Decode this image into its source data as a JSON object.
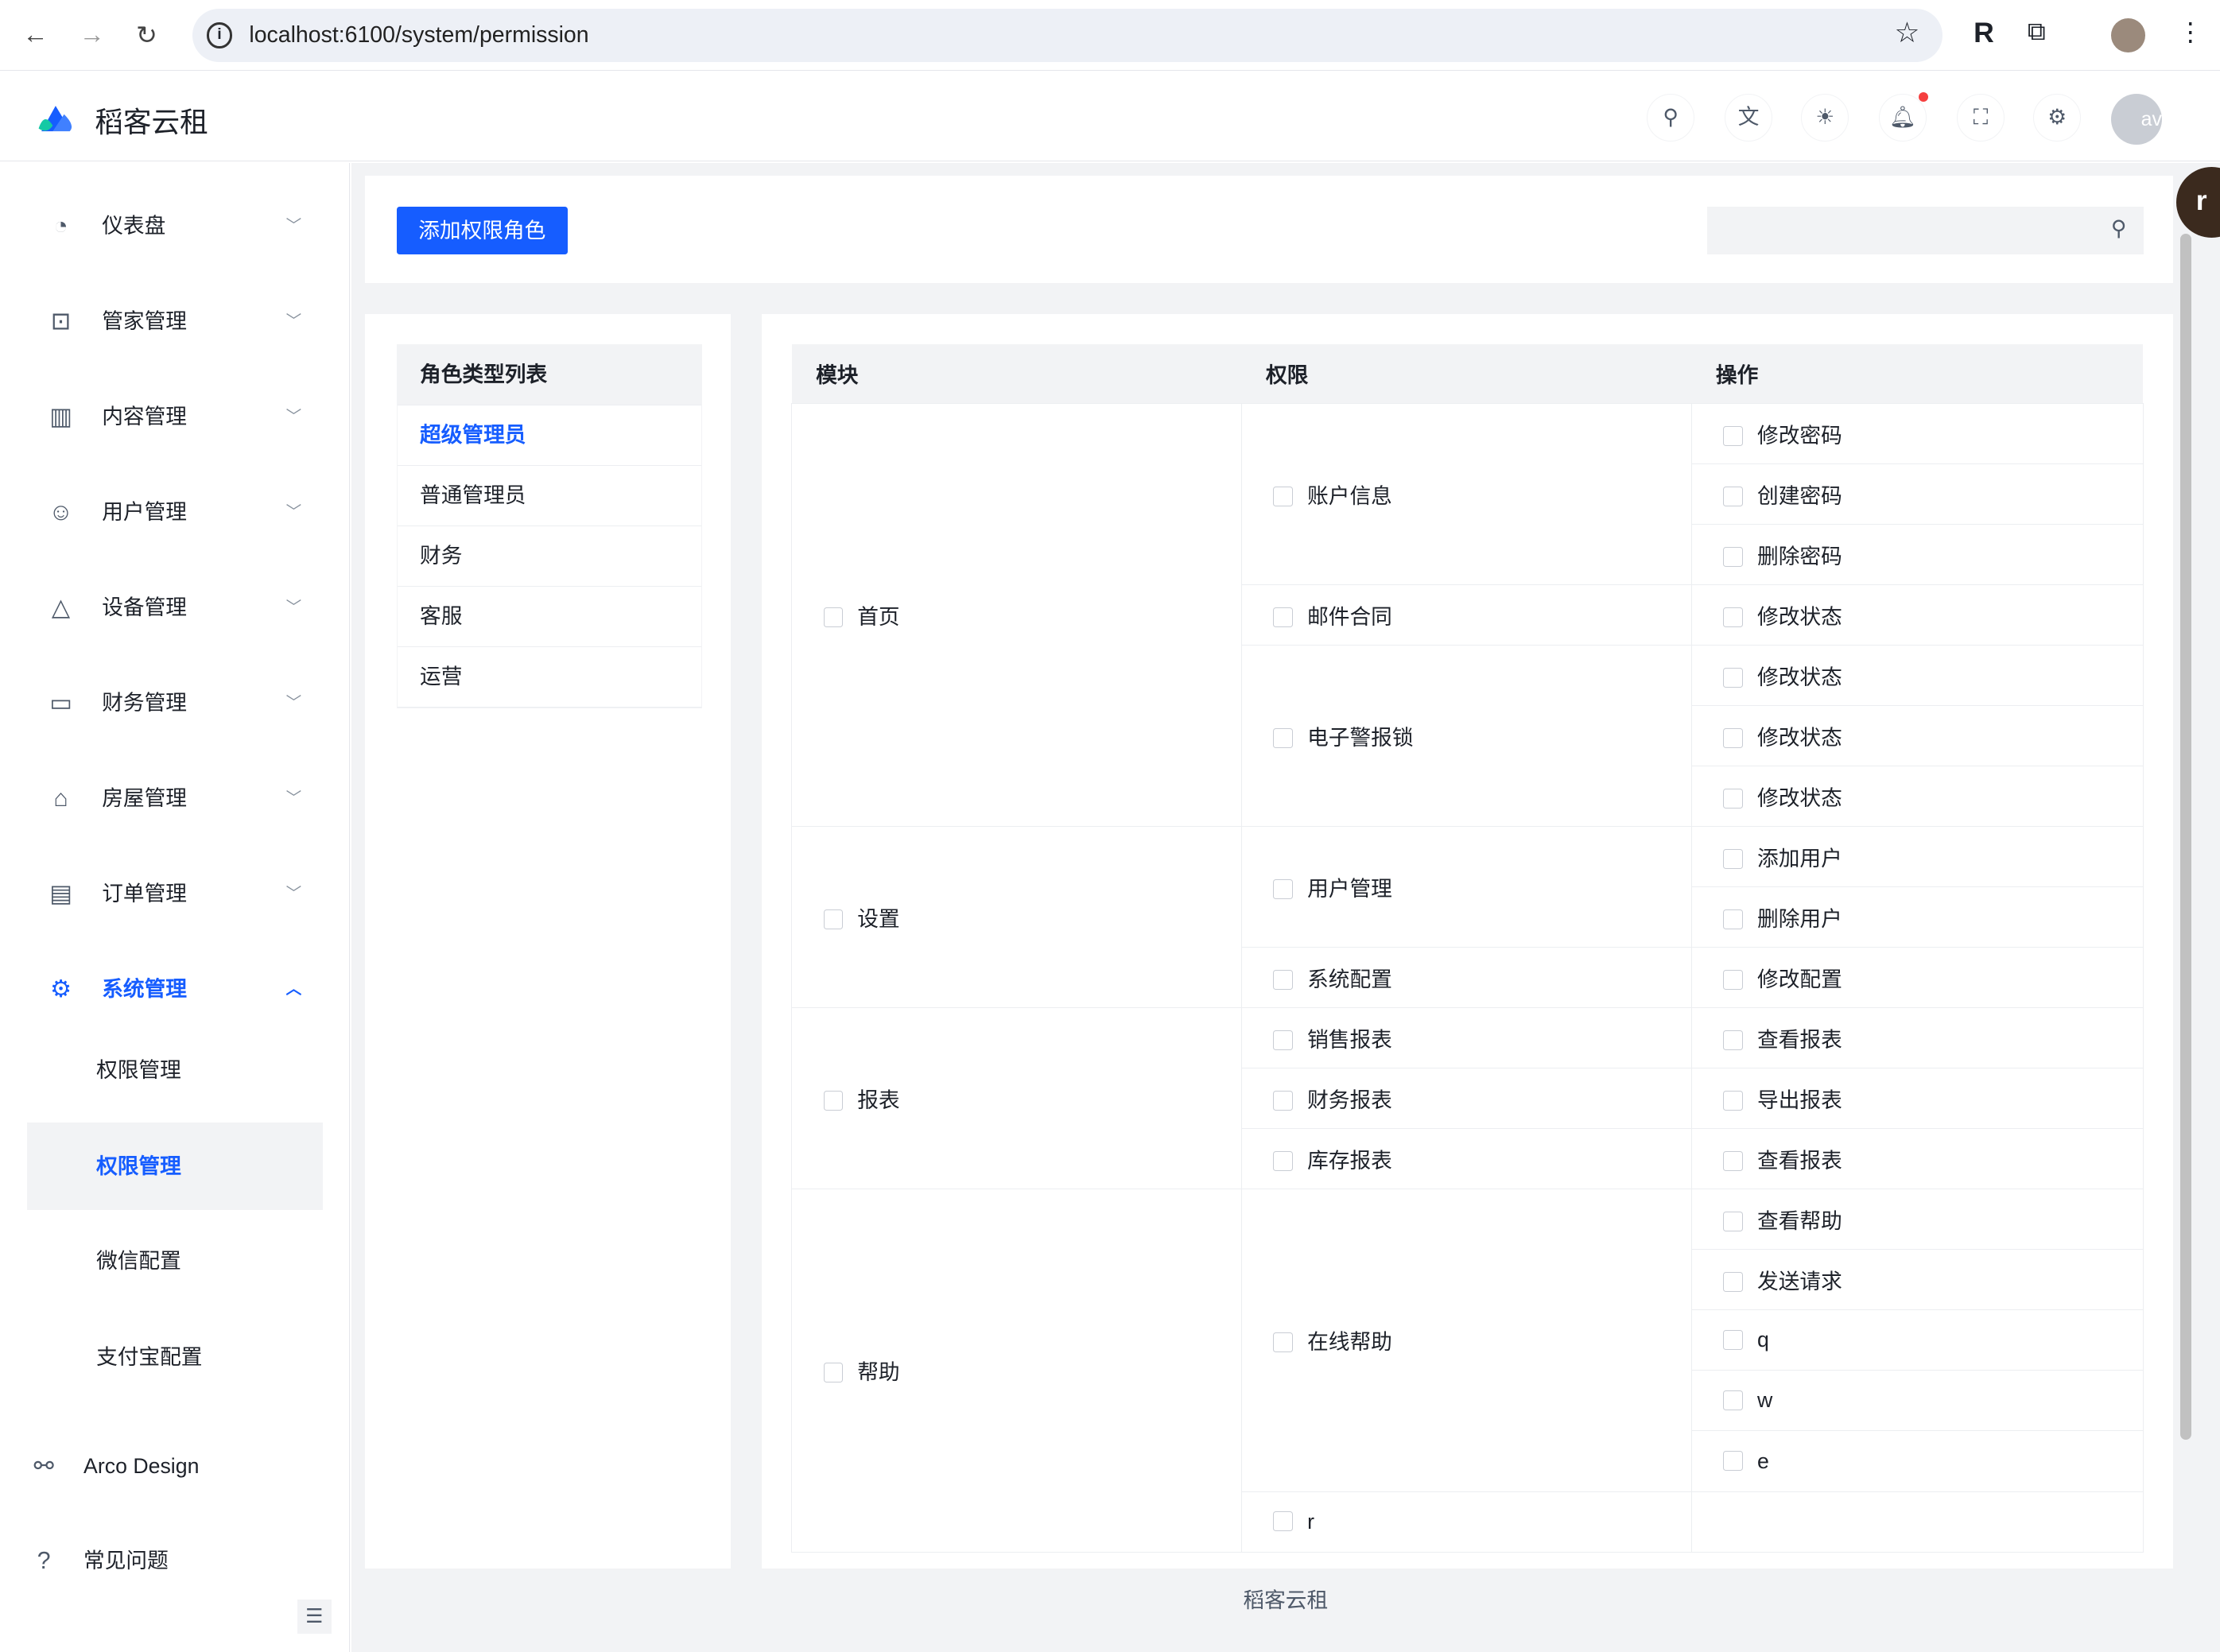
{
  "browser": {
    "url": "localhost:6100/system/permission"
  },
  "app": {
    "title": "稻客云租",
    "footer": "稻客云租",
    "accent": "#165dff"
  },
  "header_icons": [
    "search-icon",
    "translate-icon",
    "theme-icon",
    "bell-icon",
    "fullscreen-icon",
    "gear-icon"
  ],
  "sidebar": {
    "items": [
      {
        "label": "仪表盘",
        "icon": "dashboard-icon"
      },
      {
        "label": "管家管理",
        "icon": "robot-icon"
      },
      {
        "label": "内容管理",
        "icon": "book-icon"
      },
      {
        "label": "用户管理",
        "icon": "user-icon"
      },
      {
        "label": "设备管理",
        "icon": "device-icon"
      },
      {
        "label": "财务管理",
        "icon": "monitor-icon"
      },
      {
        "label": "房屋管理",
        "icon": "home-icon"
      },
      {
        "label": "订单管理",
        "icon": "file-icon"
      },
      {
        "label": "系统管理",
        "icon": "settings-icon",
        "expanded": true
      }
    ],
    "subitems": [
      {
        "label": "权限管理"
      },
      {
        "label": "权限管理",
        "selected": true
      },
      {
        "label": "微信配置"
      },
      {
        "label": "支付宝配置"
      }
    ],
    "links": [
      {
        "label": "Arco Design",
        "icon": "link-icon"
      },
      {
        "label": "常见问题",
        "icon": "question-icon"
      }
    ]
  },
  "toolbar": {
    "add_button": "添加权限角色",
    "search_placeholder": ""
  },
  "roles": {
    "header": "角色类型列表",
    "items": [
      "超级管理员",
      "普通管理员",
      "财务",
      "客服",
      "运营"
    ],
    "selected": "超级管理员"
  },
  "table": {
    "headers": [
      "模块",
      "权限",
      "操作"
    ],
    "modules": [
      {
        "name": "首页",
        "perms": [
          {
            "name": "账户信息",
            "ops": [
              "修改密码",
              "创建密码",
              "删除密码"
            ]
          },
          {
            "name": "邮件合同",
            "ops": [
              "修改状态"
            ]
          },
          {
            "name": "电子警报锁",
            "ops": [
              "修改状态",
              "修改状态",
              "修改状态"
            ]
          }
        ]
      },
      {
        "name": "设置",
        "perms": [
          {
            "name": "用户管理",
            "ops": [
              "添加用户",
              "删除用户"
            ]
          },
          {
            "name": "系统配置",
            "ops": [
              "修改配置"
            ]
          }
        ]
      },
      {
        "name": "报表",
        "perms": [
          {
            "name": "销售报表",
            "ops": [
              "查看报表"
            ]
          },
          {
            "name": "财务报表",
            "ops": [
              "导出报表"
            ]
          },
          {
            "name": "库存报表",
            "ops": [
              "查看报表"
            ]
          }
        ]
      },
      {
        "name": "帮助",
        "perms": [
          {
            "name": "在线帮助",
            "ops": [
              "查看帮助",
              "发送请求",
              "q",
              "w",
              "e"
            ]
          },
          {
            "name": "r",
            "ops": []
          }
        ]
      }
    ]
  }
}
